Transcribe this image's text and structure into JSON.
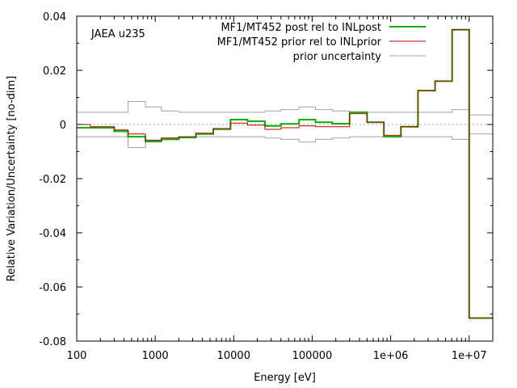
{
  "chart_data": {
    "type": "line",
    "step": true,
    "xscale": "log",
    "xlim": [
      100,
      20000000
    ],
    "ylim": [
      -0.08,
      0.04
    ],
    "xlabel": "Energy [eV]",
    "ylabel": "Relative Variation/Uncertainty [no-dim]",
    "annotation": "JAEA u235",
    "legend_position": "top-right",
    "x_ticks": [
      {
        "value": 100,
        "label": "100"
      },
      {
        "value": 1000,
        "label": "1000"
      },
      {
        "value": 10000,
        "label": "10000"
      },
      {
        "value": 100000,
        "label": "100000"
      },
      {
        "value": 1000000,
        "label": "1e+06"
      },
      {
        "value": 10000000,
        "label": "1e+07"
      }
    ],
    "y_ticks": [
      {
        "value": 0.04,
        "label": "0.04"
      },
      {
        "value": 0.02,
        "label": "0.02"
      },
      {
        "value": 0,
        "label": "0"
      },
      {
        "value": -0.02,
        "label": "-0.02"
      },
      {
        "value": -0.04,
        "label": "-0.04"
      },
      {
        "value": -0.06,
        "label": "-0.06"
      },
      {
        "value": -0.08,
        "label": "-0.08"
      }
    ],
    "bin_edges": [
      100,
      150,
      300,
      450,
      750,
      1200,
      2000,
      3300,
      5500,
      9100,
      15000,
      25000,
      40000,
      68000,
      110000,
      180000,
      300000,
      500000,
      820000,
      1350000,
      2230000,
      3680000,
      6070000,
      10000000,
      20000000
    ],
    "series": [
      {
        "name": "MF1/MT452 post rel to INLpost",
        "color": "#00b000",
        "width": 2,
        "style": "solid",
        "values": [
          -0.0012,
          -0.0012,
          -0.0025,
          -0.0045,
          -0.0062,
          -0.0055,
          -0.0048,
          -0.0035,
          -0.0017,
          0.0018,
          0.0012,
          -0.0005,
          0.0002,
          0.0018,
          0.0008,
          0.0003,
          0.0045,
          0.0008,
          -0.0045,
          -0.0008,
          0.0125,
          0.016,
          0.035,
          -0.0715
        ]
      },
      {
        "name": "MF1/MT452 prior rel to INLprior",
        "color": "#c00000",
        "width": 1,
        "style": "solid",
        "values": [
          0.0,
          -0.0008,
          -0.002,
          -0.0035,
          -0.0058,
          -0.005,
          -0.0045,
          -0.0032,
          -0.0015,
          0.0005,
          -0.0002,
          -0.0018,
          -0.0012,
          -0.0005,
          -0.0008,
          -0.0008,
          0.004,
          0.0008,
          -0.004,
          -0.0008,
          0.0125,
          0.016,
          0.035,
          -0.0715
        ]
      },
      {
        "name": "prior uncertainty",
        "color": "#a0a0a0",
        "width": 1,
        "style": "solid",
        "mirrored": true,
        "values": [
          0.0045,
          0.0045,
          0.0045,
          0.0085,
          0.0065,
          0.005,
          0.0045,
          0.0045,
          0.0045,
          0.0045,
          0.0045,
          0.005,
          0.0055,
          0.0065,
          0.0055,
          0.005,
          0.0045,
          0.0045,
          0.0045,
          0.0045,
          0.0045,
          0.0045,
          0.0055,
          0.0035
        ]
      }
    ]
  }
}
